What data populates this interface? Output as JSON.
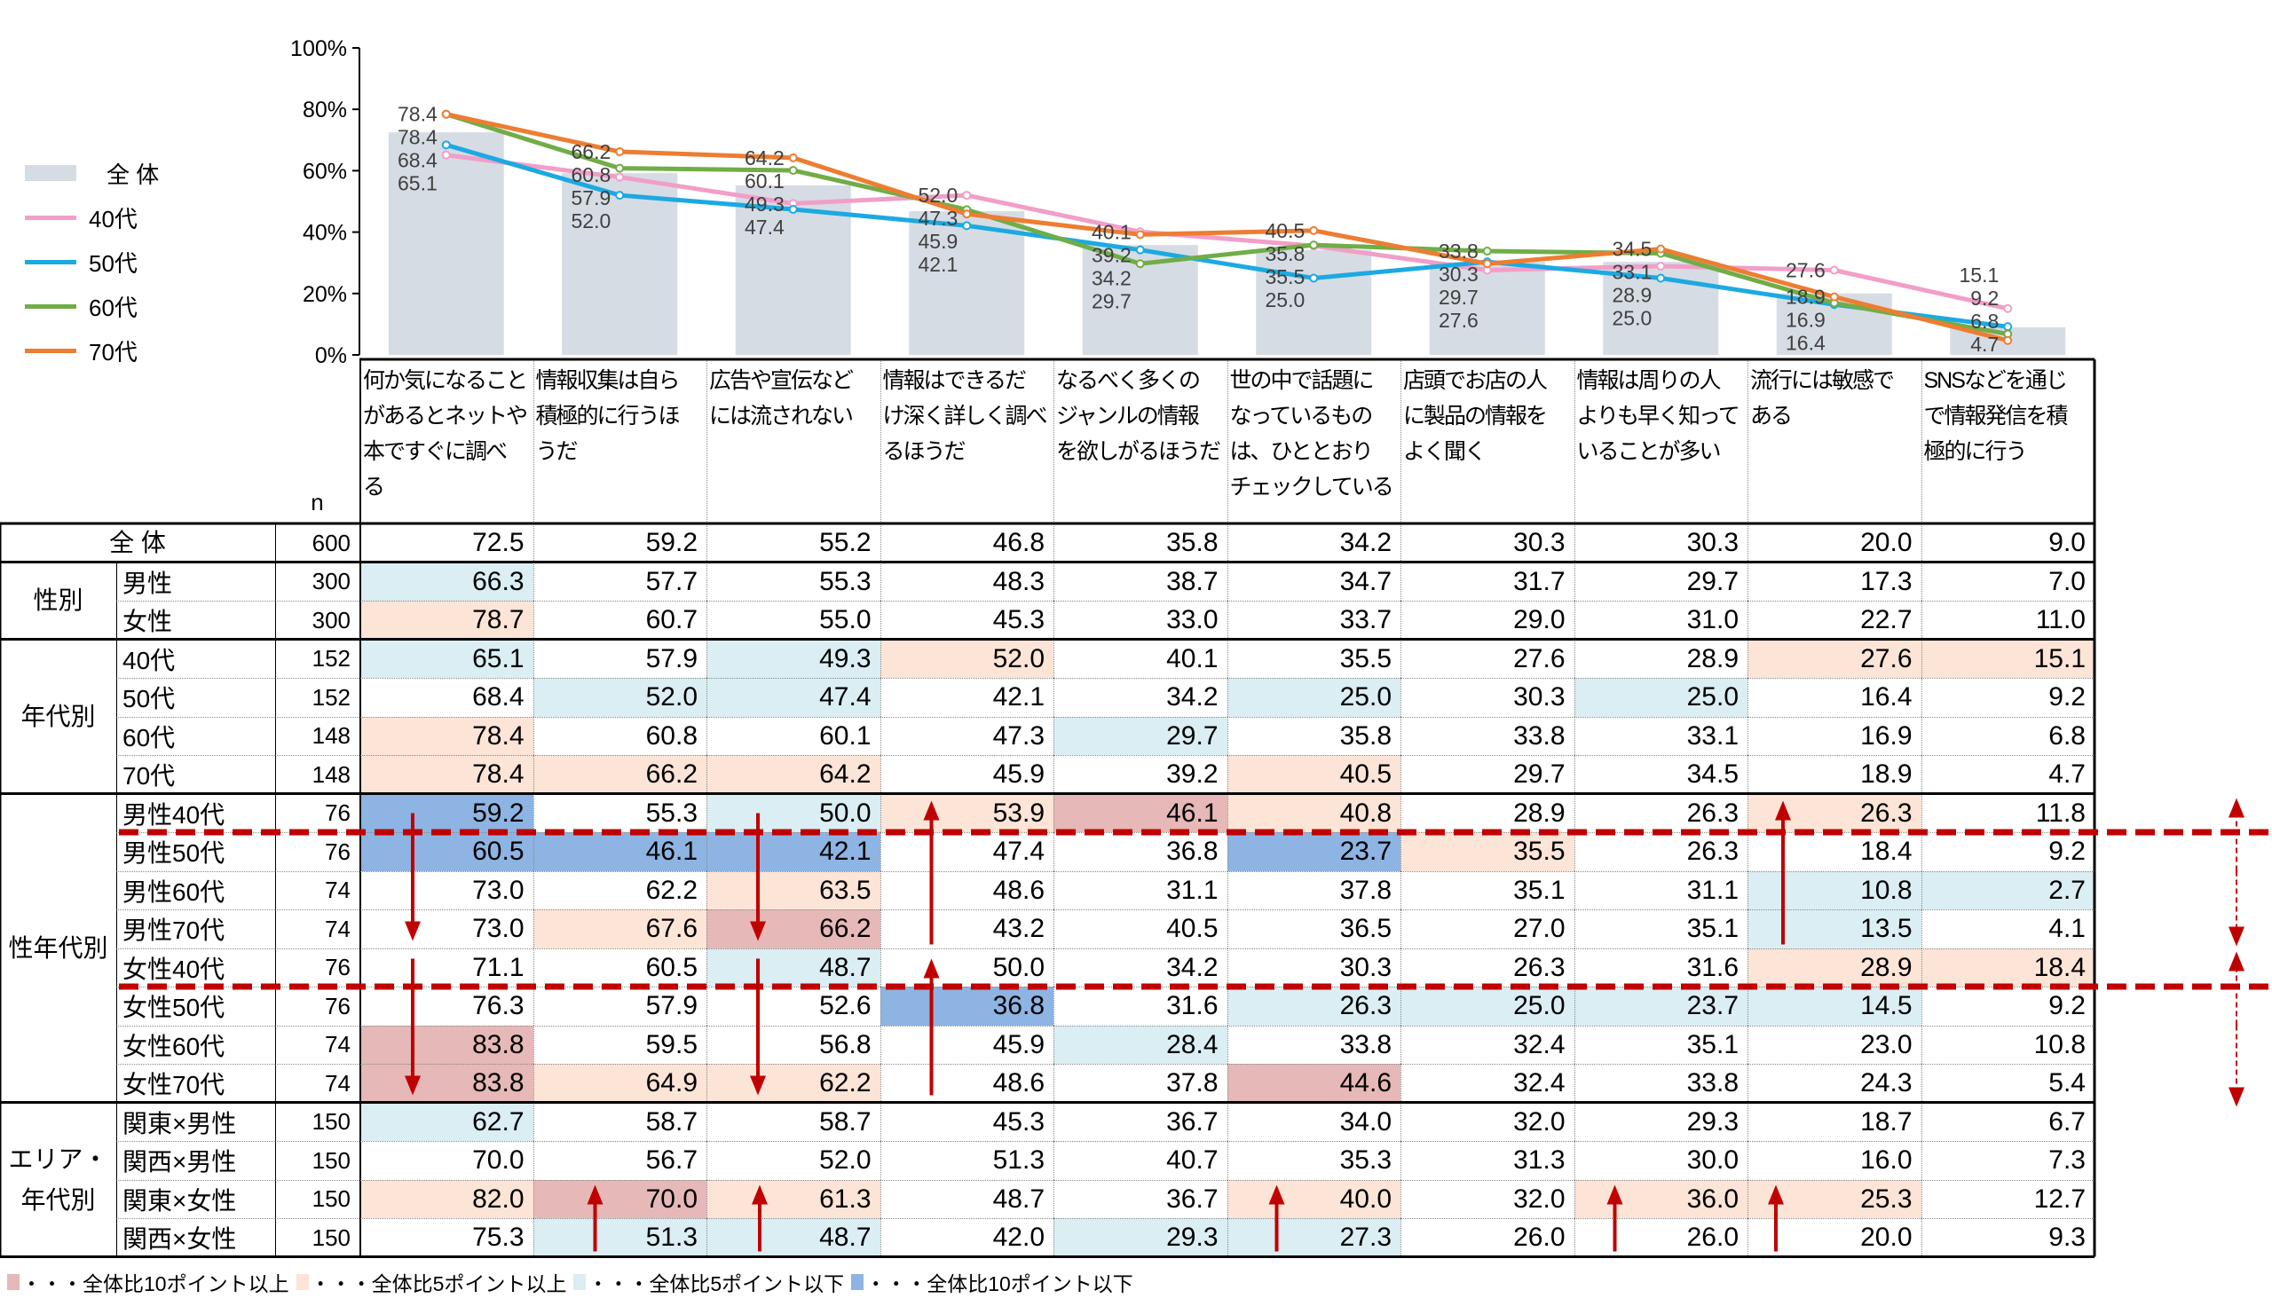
{
  "colors": {
    "bar": "#D6DCE4",
    "s40": "#F19EC8",
    "s50": "#1CA9E2",
    "s60": "#70AD47",
    "s70": "#ED7D31",
    "red": "#E6B8B7",
    "peach": "#FCE4D6",
    "lightblue": "#DAEEF3",
    "blue": "#8DB4E2",
    "arrow": "#C00000"
  },
  "chart_data": {
    "type": "bar+line",
    "y_ticks": [
      "0%",
      "20%",
      "40%",
      "60%",
      "80%",
      "100%"
    ],
    "ylim": [
      0,
      100
    ],
    "categories": [
      "何か気になることがあるとネットや本ですぐに調べる",
      "情報収集は自ら積極的に行うほうだ",
      "広告や宣伝などには流されない",
      "情報はできるだけ深く詳しく調べるほうだ",
      "なるべく多くのジャンルの情報を欲しがるほうだ",
      "世の中で話題になっているものは、ひととおりチェックしている",
      "店頭でお店の人に製品の情報をよく聞く",
      "情報は周りの人よりも早く知っていることが多い",
      "流行には敏感である",
      "SNSなどを通じて情報発信を積極的に行う"
    ],
    "bar": {
      "name": "全 体",
      "values": [
        72.5,
        59.2,
        55.2,
        46.8,
        35.8,
        34.2,
        30.3,
        30.3,
        20.0,
        9.0
      ]
    },
    "series": [
      {
        "name": "40代",
        "color_key": "s40",
        "values": [
          65.1,
          57.9,
          49.3,
          52.0,
          40.1,
          35.5,
          27.6,
          28.9,
          27.6,
          15.1
        ],
        "labels": [
          "65.1",
          "57.9",
          "49.3",
          "52.0",
          "40.1",
          "35.5",
          "27.6",
          "28.9",
          "27.6",
          "15.1"
        ]
      },
      {
        "name": "50代",
        "color_key": "s50",
        "values": [
          68.4,
          52.0,
          47.4,
          42.1,
          34.2,
          25.0,
          30.3,
          25.0,
          16.4,
          9.2
        ],
        "labels": [
          "68.4",
          "52.0",
          "47.4",
          "42.1",
          "34.2",
          "25.0",
          "30.3",
          "25.0",
          "16.4",
          "9.2"
        ]
      },
      {
        "name": "60代",
        "color_key": "s60",
        "values": [
          78.4,
          60.8,
          60.1,
          47.3,
          29.7,
          35.8,
          33.8,
          33.1,
          16.9,
          6.8
        ],
        "labels": [
          "78.4",
          "60.8",
          "60.1",
          "47.3",
          "29.7",
          "35.8",
          "33.8",
          "33.1",
          "16.9",
          "6.8"
        ]
      },
      {
        "name": "70代",
        "color_key": "s70",
        "values": [
          78.4,
          66.2,
          64.2,
          45.9,
          39.2,
          40.5,
          29.7,
          34.5,
          18.9,
          4.7
        ],
        "labels": [
          "78.4",
          "66.2",
          "64.2",
          "45.9",
          "39.2",
          "40.5",
          "29.7",
          "34.5",
          "18.9",
          "4.7"
        ]
      }
    ],
    "legend_position": "left"
  },
  "table": {
    "n_header": "n",
    "headers": [
      "何か気になること\nがあるとネットや\n本ですぐに調べ\nる",
      "情報収集は自ら\n積極的に行うほ\nうだ",
      "広告や宣伝など\nには流されない",
      "情報はできるだ\nけ深く詳しく調べ\nるほうだ",
      "なるべく多くの\nジャンルの情報\nを欲しがるほうだ",
      "世の中で話題に\nなっているもの\nは、ひととおり\nチェックしている",
      "店頭でお店の人\nに製品の情報を\nよく聞く",
      "情報は周りの人\nよりも早く知って\nいることが多い",
      "流行には敏感で\nある",
      "SNSなどを通じ\nで情報発信を積\n極的に行う"
    ],
    "groups": [
      {
        "label": "性別",
        "start": 1,
        "count": 2
      },
      {
        "label": "年代別",
        "start": 3,
        "count": 4
      },
      {
        "label": "性年代別",
        "start": 7,
        "count": 8
      },
      {
        "label": "エリア・\n年代別",
        "start": 15,
        "count": 4
      }
    ],
    "rows": [
      {
        "label": "全 体",
        "n": "600",
        "values": [
          "72.5",
          "59.2",
          "55.2",
          "46.8",
          "35.8",
          "34.2",
          "30.3",
          "30.3",
          "20.0",
          "9.0"
        ],
        "marks": [
          "",
          "",
          "",
          "",
          "",
          "",
          "",
          "",
          "",
          ""
        ]
      },
      {
        "label": "男性",
        "n": "300",
        "values": [
          "66.3",
          "57.7",
          "55.3",
          "48.3",
          "38.7",
          "34.7",
          "31.7",
          "29.7",
          "17.3",
          "7.0"
        ],
        "marks": [
          "l",
          "",
          "",
          "",
          "",
          "",
          "",
          "",
          "",
          ""
        ]
      },
      {
        "label": "女性",
        "n": "300",
        "values": [
          "78.7",
          "60.7",
          "55.0",
          "45.3",
          "33.0",
          "33.7",
          "29.0",
          "31.0",
          "22.7",
          "11.0"
        ],
        "marks": [
          "p",
          "",
          "",
          "",
          "",
          "",
          "",
          "",
          "",
          ""
        ]
      },
      {
        "label": "40代",
        "n": "152",
        "values": [
          "65.1",
          "57.9",
          "49.3",
          "52.0",
          "40.1",
          "35.5",
          "27.6",
          "28.9",
          "27.6",
          "15.1"
        ],
        "marks": [
          "l",
          "",
          "l",
          "p",
          "",
          "",
          "",
          "",
          "p",
          "p"
        ]
      },
      {
        "label": "50代",
        "n": "152",
        "values": [
          "68.4",
          "52.0",
          "47.4",
          "42.1",
          "34.2",
          "25.0",
          "30.3",
          "25.0",
          "16.4",
          "9.2"
        ],
        "marks": [
          "",
          "l",
          "l",
          "",
          "",
          "l",
          "",
          "l",
          "",
          ""
        ]
      },
      {
        "label": "60代",
        "n": "148",
        "values": [
          "78.4",
          "60.8",
          "60.1",
          "47.3",
          "29.7",
          "35.8",
          "33.8",
          "33.1",
          "16.9",
          "6.8"
        ],
        "marks": [
          "p",
          "",
          "",
          "",
          "l",
          "",
          "",
          "",
          "",
          ""
        ]
      },
      {
        "label": "70代",
        "n": "148",
        "values": [
          "78.4",
          "66.2",
          "64.2",
          "45.9",
          "39.2",
          "40.5",
          "29.7",
          "34.5",
          "18.9",
          "4.7"
        ],
        "marks": [
          "p",
          "p",
          "p",
          "",
          "",
          "p",
          "",
          "",
          "",
          ""
        ]
      },
      {
        "label": "男性40代",
        "n": "76",
        "values": [
          "59.2",
          "55.3",
          "50.0",
          "53.9",
          "46.1",
          "40.8",
          "28.9",
          "26.3",
          "26.3",
          "11.8"
        ],
        "marks": [
          "b",
          "",
          "l",
          "p",
          "r",
          "p",
          "",
          "",
          "p",
          ""
        ]
      },
      {
        "label": "男性50代",
        "n": "76",
        "values": [
          "60.5",
          "46.1",
          "42.1",
          "47.4",
          "36.8",
          "23.7",
          "35.5",
          "26.3",
          "18.4",
          "9.2"
        ],
        "marks": [
          "b",
          "b",
          "b",
          "",
          "",
          "b",
          "p",
          "",
          "",
          ""
        ]
      },
      {
        "label": "男性60代",
        "n": "74",
        "values": [
          "73.0",
          "62.2",
          "63.5",
          "48.6",
          "31.1",
          "37.8",
          "35.1",
          "31.1",
          "10.8",
          "2.7"
        ],
        "marks": [
          "",
          "",
          "p",
          "",
          "",
          "",
          "",
          "",
          "l",
          "l"
        ]
      },
      {
        "label": "男性70代",
        "n": "74",
        "values": [
          "73.0",
          "67.6",
          "66.2",
          "43.2",
          "40.5",
          "36.5",
          "27.0",
          "35.1",
          "13.5",
          "4.1"
        ],
        "marks": [
          "",
          "p",
          "r",
          "",
          "",
          "",
          "",
          "",
          "l",
          ""
        ]
      },
      {
        "label": "女性40代",
        "n": "76",
        "values": [
          "71.1",
          "60.5",
          "48.7",
          "50.0",
          "34.2",
          "30.3",
          "26.3",
          "31.6",
          "28.9",
          "18.4"
        ],
        "marks": [
          "",
          "",
          "l",
          "",
          "",
          "",
          "",
          "",
          "p",
          "p"
        ]
      },
      {
        "label": "女性50代",
        "n": "76",
        "values": [
          "76.3",
          "57.9",
          "52.6",
          "36.8",
          "31.6",
          "26.3",
          "25.0",
          "23.7",
          "14.5",
          "9.2"
        ],
        "marks": [
          "",
          "",
          "",
          "b",
          "",
          "l",
          "l",
          "l",
          "l",
          ""
        ]
      },
      {
        "label": "女性60代",
        "n": "74",
        "values": [
          "83.8",
          "59.5",
          "56.8",
          "45.9",
          "28.4",
          "33.8",
          "32.4",
          "35.1",
          "23.0",
          "10.8"
        ],
        "marks": [
          "r",
          "",
          "",
          "",
          "l",
          "",
          "",
          "",
          "",
          ""
        ]
      },
      {
        "label": "女性70代",
        "n": "74",
        "values": [
          "83.8",
          "64.9",
          "62.2",
          "48.6",
          "37.8",
          "44.6",
          "32.4",
          "33.8",
          "24.3",
          "5.4"
        ],
        "marks": [
          "r",
          "p",
          "p",
          "",
          "",
          "r",
          "",
          "",
          "",
          ""
        ]
      },
      {
        "label": "関東×男性",
        "n": "150",
        "values": [
          "62.7",
          "58.7",
          "58.7",
          "45.3",
          "36.7",
          "34.0",
          "32.0",
          "29.3",
          "18.7",
          "6.7"
        ],
        "marks": [
          "l",
          "",
          "",
          "",
          "",
          "",
          "",
          "",
          "",
          ""
        ]
      },
      {
        "label": "関西×男性",
        "n": "150",
        "values": [
          "70.0",
          "56.7",
          "52.0",
          "51.3",
          "40.7",
          "35.3",
          "31.3",
          "30.0",
          "16.0",
          "7.3"
        ],
        "marks": [
          "",
          "",
          "",
          "",
          "",
          "",
          "",
          "",
          "",
          ""
        ]
      },
      {
        "label": "関東×女性",
        "n": "150",
        "values": [
          "82.0",
          "70.0",
          "61.3",
          "48.7",
          "36.7",
          "40.0",
          "32.0",
          "36.0",
          "25.3",
          "12.7"
        ],
        "marks": [
          "p",
          "r",
          "p",
          "",
          "",
          "p",
          "",
          "p",
          "p",
          ""
        ]
      },
      {
        "label": "関西×女性",
        "n": "150",
        "values": [
          "75.3",
          "51.3",
          "48.7",
          "42.0",
          "29.3",
          "27.3",
          "26.0",
          "26.0",
          "20.0",
          "9.3"
        ],
        "marks": [
          "",
          "l",
          "l",
          "",
          "l",
          "l",
          "",
          "",
          "",
          ""
        ]
      }
    ]
  },
  "footnote": [
    {
      "mark": "r",
      "text": "・・・全体比10ポイント以上"
    },
    {
      "mark": "p",
      "text": "・・・全体比5ポイント以上"
    },
    {
      "mark": "l",
      "text": "・・・全体比5ポイント以下"
    },
    {
      "mark": "b",
      "text": "・・・全体比10ポイント以下"
    }
  ]
}
